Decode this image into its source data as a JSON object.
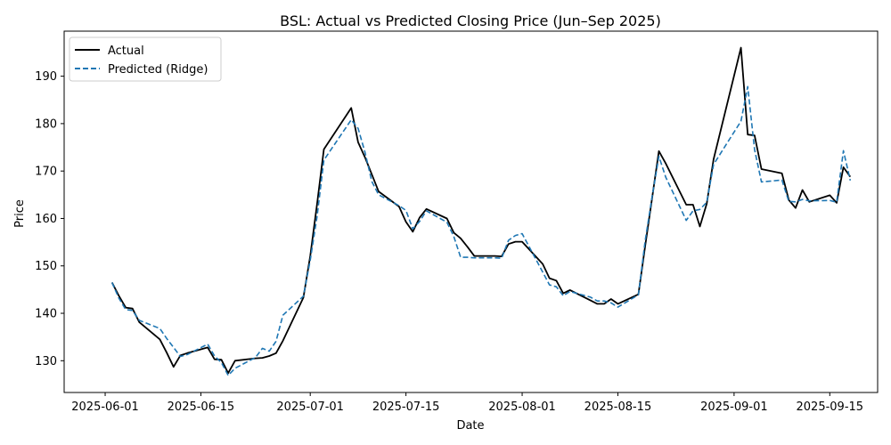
{
  "chart_data": {
    "type": "line",
    "title": "BSL: Actual vs Predicted Closing Price (Jun–Sep 2025)",
    "xlabel": "Date",
    "ylabel": "Price",
    "x_range": [
      "2025-05-26",
      "2025-09-22"
    ],
    "ylim": [
      123.3,
      199.5
    ],
    "x_ticks": [
      "2025-06-01",
      "2025-06-15",
      "2025-07-01",
      "2025-07-15",
      "2025-08-01",
      "2025-08-15",
      "2025-09-01",
      "2025-09-15"
    ],
    "y_ticks": [
      130,
      140,
      150,
      160,
      170,
      180,
      190
    ],
    "grid": false,
    "legend_position": "upper-left",
    "dates": [
      "2025-06-02",
      "2025-06-03",
      "2025-06-04",
      "2025-06-05",
      "2025-06-06",
      "2025-06-09",
      "2025-06-10",
      "2025-06-11",
      "2025-06-12",
      "2025-06-13",
      "2025-06-16",
      "2025-06-17",
      "2025-06-18",
      "2025-06-19",
      "2025-06-20",
      "2025-06-23",
      "2025-06-24",
      "2025-06-25",
      "2025-06-26",
      "2025-06-27",
      "2025-06-30",
      "2025-07-01",
      "2025-07-02",
      "2025-07-03",
      "2025-07-07",
      "2025-07-08",
      "2025-07-09",
      "2025-07-10",
      "2025-07-11",
      "2025-07-14",
      "2025-07-15",
      "2025-07-16",
      "2025-07-17",
      "2025-07-18",
      "2025-07-21",
      "2025-07-22",
      "2025-07-23",
      "2025-07-24",
      "2025-07-25",
      "2025-07-28",
      "2025-07-29",
      "2025-07-30",
      "2025-07-31",
      "2025-08-01",
      "2025-08-04",
      "2025-08-05",
      "2025-08-06",
      "2025-08-07",
      "2025-08-08",
      "2025-08-11",
      "2025-08-12",
      "2025-08-13",
      "2025-08-14",
      "2025-08-15",
      "2025-08-18",
      "2025-08-19",
      "2025-08-20",
      "2025-08-21",
      "2025-08-22",
      "2025-08-25",
      "2025-08-26",
      "2025-08-27",
      "2025-08-28",
      "2025-08-29",
      "2025-09-02",
      "2025-09-03",
      "2025-09-04",
      "2025-09-05",
      "2025-09-08",
      "2025-09-09",
      "2025-09-10",
      "2025-09-11",
      "2025-09-12",
      "2025-09-15",
      "2025-09-16",
      "2025-09-17",
      "2025-09-18"
    ],
    "series": [
      {
        "name": "Actual",
        "color": "#000000",
        "style": "solid",
        "values": [
          146.5,
          143.7,
          141.2,
          141.0,
          138.1,
          134.5,
          131.7,
          128.7,
          131.1,
          131.6,
          132.8,
          130.3,
          130.2,
          127.4,
          130.0,
          130.5,
          130.6,
          131.0,
          131.6,
          134.2,
          143.3,
          152.1,
          163.1,
          174.6,
          183.3,
          176.1,
          172.9,
          169.3,
          165.7,
          162.5,
          159.3,
          157.2,
          160.2,
          162.0,
          160.0,
          157.0,
          155.8,
          154.0,
          152.1,
          152.1,
          152.0,
          154.6,
          155.1,
          155.1,
          150.4,
          147.4,
          146.9,
          144.2,
          144.9,
          142.7,
          142.0,
          142.0,
          143.0,
          142.0,
          144.0,
          154.2,
          164.2,
          174.2,
          171.6,
          162.9,
          162.9,
          158.3,
          163.1,
          172.5,
          196.0,
          177.7,
          177.5,
          170.4,
          169.5,
          163.9,
          162.2,
          166.0,
          163.5,
          164.9,
          163.3,
          170.8,
          168.8
        ]
      },
      {
        "name": "Predicted (Ridge)",
        "color": "#1f77b4",
        "style": "dashed",
        "values": [
          146.5,
          143.2,
          140.8,
          140.6,
          138.5,
          136.8,
          134.7,
          132.8,
          130.9,
          131.3,
          133.5,
          131.0,
          129.6,
          126.9,
          128.4,
          130.7,
          132.6,
          132.0,
          134.1,
          139.6,
          143.6,
          151.2,
          160.5,
          172.3,
          180.8,
          179.0,
          174.0,
          167.8,
          165.0,
          162.7,
          161.7,
          157.8,
          159.4,
          161.6,
          159.2,
          156.2,
          151.8,
          151.8,
          151.7,
          151.7,
          151.6,
          155.4,
          156.4,
          156.8,
          148.7,
          146.0,
          145.6,
          143.7,
          144.6,
          143.4,
          142.6,
          142.6,
          142.2,
          141.3,
          143.9,
          155.3,
          164.5,
          173.1,
          168.7,
          159.6,
          161.6,
          161.9,
          163.4,
          171.4,
          180.5,
          187.8,
          174.5,
          167.7,
          168.1,
          163.6,
          163.5,
          164.0,
          163.7,
          163.8,
          163.4,
          174.3,
          168.0
        ]
      }
    ]
  }
}
